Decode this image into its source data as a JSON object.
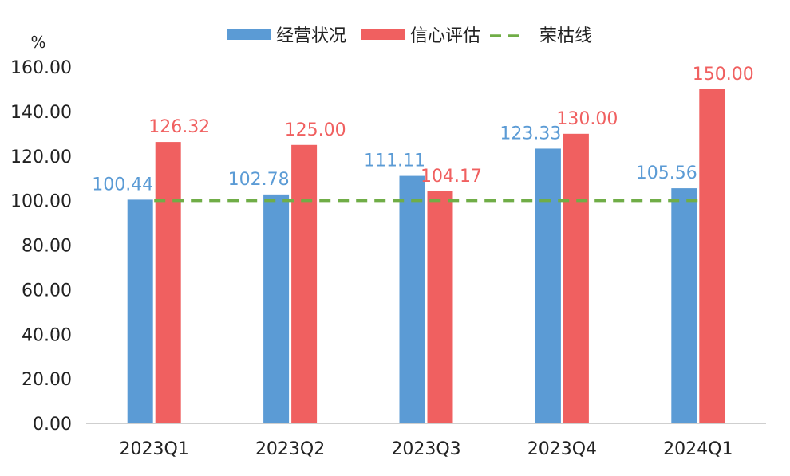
{
  "chart_data": {
    "type": "bar",
    "unit_label": "%",
    "categories": [
      "2023Q1",
      "2023Q2",
      "2023Q3",
      "2023Q4",
      "2024Q1"
    ],
    "series": [
      {
        "name": "经营状况",
        "type": "bar",
        "color": "#5B9BD5",
        "values": [
          100.44,
          102.78,
          111.11,
          123.33,
          105.56
        ]
      },
      {
        "name": "信心评估",
        "type": "bar",
        "color": "#F06060",
        "values": [
          126.32,
          125.0,
          104.17,
          130.0,
          150.0
        ]
      },
      {
        "name": "荣枯线",
        "type": "line",
        "style": "dashed",
        "color": "#70AD47",
        "values": [
          100,
          100,
          100,
          100,
          100
        ]
      }
    ],
    "y_ticks": [
      "0.00",
      "20.00",
      "40.00",
      "60.00",
      "80.00",
      "100.00",
      "120.00",
      "140.00",
      "160.00"
    ],
    "ylim": [
      0,
      160
    ],
    "grid": false,
    "legend_position": "top"
  }
}
